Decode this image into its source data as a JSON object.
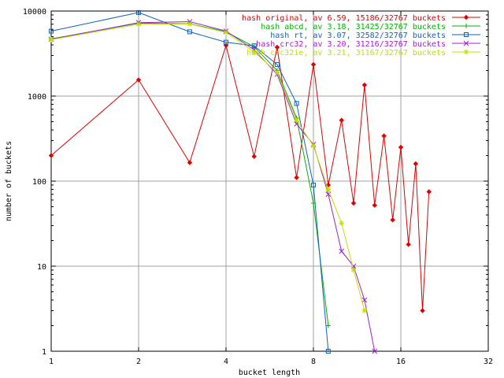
{
  "chart_data": {
    "type": "line",
    "title": "",
    "xlabel": "bucket length",
    "ylabel": "number of buckets",
    "xscale": "log2",
    "yscale": "log10",
    "xlim": [
      1,
      32
    ],
    "ylim": [
      1,
      10000
    ],
    "grid": true,
    "legend_position": "top-right",
    "x_ticks": [
      {
        "v": 1,
        "label": "1"
      },
      {
        "v": 2,
        "label": "2"
      },
      {
        "v": 4,
        "label": "4"
      },
      {
        "v": 8,
        "label": "8"
      },
      {
        "v": 16,
        "label": "16"
      },
      {
        "v": 32,
        "label": "32"
      }
    ],
    "y_ticks": [
      {
        "v": 1,
        "label": "1"
      },
      {
        "v": 10,
        "label": "10"
      },
      {
        "v": 100,
        "label": "100"
      },
      {
        "v": 1000,
        "label": "1000"
      },
      {
        "v": 10000,
        "label": "10000"
      }
    ],
    "series": [
      {
        "name": "hash original, av 6.59, 15186/32767 buckets",
        "color": "#e00000",
        "marker": "diamond",
        "points": [
          [
            1,
            200
          ],
          [
            2,
            1550
          ],
          [
            3,
            165
          ],
          [
            4,
            3950
          ],
          [
            5,
            195
          ],
          [
            6,
            3750
          ],
          [
            7,
            110
          ],
          [
            8,
            2350
          ],
          [
            9,
            90
          ],
          [
            10,
            520
          ],
          [
            11,
            55
          ],
          [
            12,
            1350
          ],
          [
            13,
            52
          ],
          [
            14,
            340
          ],
          [
            15,
            35
          ],
          [
            16,
            250
          ],
          [
            17,
            18
          ],
          [
            18,
            160
          ],
          [
            19,
            3
          ],
          [
            20,
            75
          ]
        ]
      },
      {
        "name": "hash abcd, av 3.18, 31425/32767 buckets",
        "color": "#00b000",
        "marker": "plus",
        "points": [
          [
            1,
            4700
          ],
          [
            2,
            7200
          ],
          [
            3,
            7100
          ],
          [
            4,
            5700
          ],
          [
            5,
            3800
          ],
          [
            6,
            2000
          ],
          [
            7,
            550
          ],
          [
            8,
            55
          ],
          [
            9,
            2
          ]
        ]
      },
      {
        "name": "hash rt, av 3.07, 32582/32767 buckets",
        "color": "#1060c0",
        "marker": "square",
        "points": [
          [
            1,
            5800
          ],
          [
            2,
            9600
          ],
          [
            3,
            5700
          ],
          [
            4,
            4300
          ],
          [
            5,
            3900
          ],
          [
            6,
            2350
          ],
          [
            7,
            820
          ],
          [
            8,
            90
          ],
          [
            9,
            1
          ]
        ]
      },
      {
        "name": "hash crc32, av 3.20, 31216/32767 buckets",
        "color": "#a020d0",
        "marker": "cross",
        "points": [
          [
            1,
            4650
          ],
          [
            2,
            7300
          ],
          [
            3,
            7500
          ],
          [
            4,
            5800
          ],
          [
            5,
            3500
          ],
          [
            6,
            1800
          ],
          [
            7,
            470
          ],
          [
            8,
            270
          ],
          [
            9,
            70
          ],
          [
            10,
            15
          ],
          [
            11,
            10
          ],
          [
            12,
            4
          ],
          [
            13,
            1
          ]
        ]
      },
      {
        "name": "hash crc32ie, av 3.21, 31167/32767 buckets",
        "color": "#c0e000",
        "marker": "star",
        "points": [
          [
            1,
            4600
          ],
          [
            2,
            7000
          ],
          [
            3,
            7050
          ],
          [
            4,
            5600
          ],
          [
            5,
            3300
          ],
          [
            6,
            1900
          ],
          [
            7,
            520
          ],
          [
            8,
            260
          ],
          [
            9,
            80
          ],
          [
            10,
            32
          ],
          [
            11,
            9
          ],
          [
            12,
            3
          ]
        ]
      }
    ]
  }
}
